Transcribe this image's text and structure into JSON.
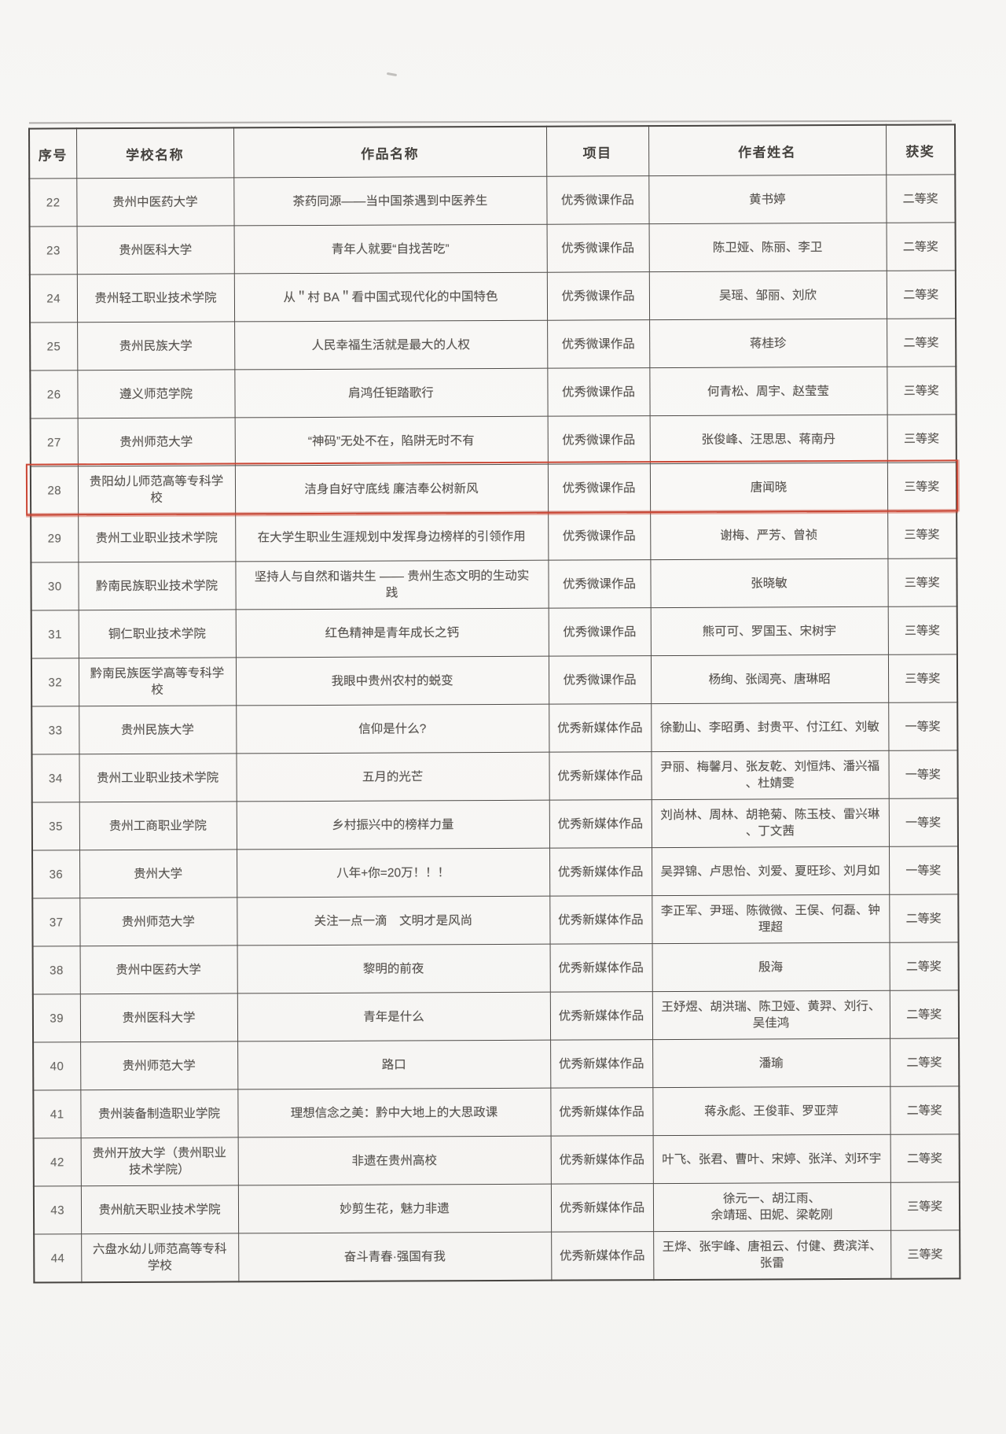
{
  "highlight_color": "#cb4634",
  "table": {
    "headers": [
      "序号",
      "学校名称",
      "作品名称",
      "项目",
      "作者姓名",
      "获奖"
    ],
    "rows": [
      {
        "no": "22",
        "school": "贵州中医药大学",
        "title": "茶药同源——当中国茶遇到中医养生",
        "category": "优秀微课作品",
        "authors": "黄书婷",
        "award": "二等奖",
        "highlighted": false
      },
      {
        "no": "23",
        "school": "贵州医科大学",
        "title": "青年人就要“自找苦吃”",
        "category": "优秀微课作品",
        "authors": "陈卫娅、陈丽、李卫",
        "award": "二等奖",
        "highlighted": false
      },
      {
        "no": "24",
        "school": "贵州轻工职业技术学院",
        "title": "从＂村 BA＂看中国式现代化的中国特色",
        "category": "优秀微课作品",
        "authors": "吴瑶、邹丽、刘欣",
        "award": "二等奖",
        "highlighted": false
      },
      {
        "no": "25",
        "school": "贵州民族大学",
        "title": "人民幸福生活就是最大的人权",
        "category": "优秀微课作品",
        "authors": "蒋桂珍",
        "award": "二等奖",
        "highlighted": false
      },
      {
        "no": "26",
        "school": "遵义师范学院",
        "title": "肩鸿任钜踏歌行",
        "category": "优秀微课作品",
        "authors": "何青松、周宇、赵莹莹",
        "award": "三等奖",
        "highlighted": false
      },
      {
        "no": "27",
        "school": "贵州师范大学",
        "title": "“神码”无处不在，陷阱无时不有",
        "category": "优秀微课作品",
        "authors": "张俊峰、汪思思、蒋南丹",
        "award": "三等奖",
        "highlighted": false
      },
      {
        "no": "28",
        "school": "贵阳幼儿师范高等专科学校",
        "title": "洁身自好守底线 廉洁奉公树新风",
        "category": "优秀微课作品",
        "authors": "唐闻晓",
        "award": "三等奖",
        "highlighted": true
      },
      {
        "no": "29",
        "school": "贵州工业职业技术学院",
        "title": "在大学生职业生涯规划中发挥身边榜样的引领作用",
        "category": "优秀微课作品",
        "authors": "谢梅、严芳、曾祯",
        "award": "三等奖",
        "highlighted": false
      },
      {
        "no": "30",
        "school": "黔南民族职业技术学院",
        "title": "坚持人与自然和谐共生 —— 贵州生态文明的生动实\n践",
        "category": "优秀微课作品",
        "authors": "张晓敏",
        "award": "三等奖",
        "highlighted": false
      },
      {
        "no": "31",
        "school": "铜仁职业技术学院",
        "title": "红色精神是青年成长之钙",
        "category": "优秀微课作品",
        "authors": "熊可可、罗国玉、宋树宇",
        "award": "三等奖",
        "highlighted": false
      },
      {
        "no": "32",
        "school": "黔南民族医学高等专科学\n校",
        "title": "我眼中贵州农村的蜕变",
        "category": "优秀微课作品",
        "authors": "杨绚、张阔亮、唐琳昭",
        "award": "三等奖",
        "highlighted": false
      },
      {
        "no": "33",
        "school": "贵州民族大学",
        "title": "信仰是什么?",
        "category": "优秀新媒体作品",
        "authors": "徐勤山、李昭勇、封贵平、付江红、刘敏",
        "award": "一等奖",
        "highlighted": false
      },
      {
        "no": "34",
        "school": "贵州工业职业技术学院",
        "title": "五月的光芒",
        "category": "优秀新媒体作品",
        "authors": "尹丽、梅馨月、张友乾、刘恒炜、潘兴福\n、杜婧雯",
        "award": "一等奖",
        "highlighted": false
      },
      {
        "no": "35",
        "school": "贵州工商职业学院",
        "title": "乡村振兴中的榜样力量",
        "category": "优秀新媒体作品",
        "authors": "刘尚林、周林、胡艳菊、陈玉枝、雷兴琳\n、丁文茜",
        "award": "一等奖",
        "highlighted": false
      },
      {
        "no": "36",
        "school": "贵州大学",
        "title": "八年+你=20万！！！",
        "category": "优秀新媒体作品",
        "authors": "吴羿锦、卢思怡、刘爱、夏旺珍、刘月如",
        "award": "一等奖",
        "highlighted": false
      },
      {
        "no": "37",
        "school": "贵州师范大学",
        "title": "关注一点一滴　文明才是风尚",
        "category": "优秀新媒体作品",
        "authors": "李正军、尹瑶、陈微微、王俣、何磊、钟\n理超",
        "award": "二等奖",
        "highlighted": false
      },
      {
        "no": "38",
        "school": "贵州中医药大学",
        "title": "黎明的前夜",
        "category": "优秀新媒体作品",
        "authors": "殷海",
        "award": "二等奖",
        "highlighted": false
      },
      {
        "no": "39",
        "school": "贵州医科大学",
        "title": "青年是什么",
        "category": "优秀新媒体作品",
        "authors": "王妤煜、胡洪瑞、陈卫娅、黄羿、刘行、\n吴佳鸿",
        "award": "二等奖",
        "highlighted": false
      },
      {
        "no": "40",
        "school": "贵州师范大学",
        "title": "路口",
        "category": "优秀新媒体作品",
        "authors": "潘瑜",
        "award": "二等奖",
        "highlighted": false
      },
      {
        "no": "41",
        "school": "贵州装备制造职业学院",
        "title": "理想信念之美：黔中大地上的大思政课",
        "category": "优秀新媒体作品",
        "authors": "蒋永彪、王俊菲、罗亚萍",
        "award": "二等奖",
        "highlighted": false
      },
      {
        "no": "42",
        "school": "贵州开放大学（贵州职业\n技术学院）",
        "title": "非遗在贵州高校",
        "category": "优秀新媒体作品",
        "authors": "叶飞、张君、曹叶、宋婷、张洋、刘环宇",
        "award": "二等奖",
        "highlighted": false
      },
      {
        "no": "43",
        "school": "贵州航天职业技术学院",
        "title": "妙剪生花，魅力非遗",
        "category": "优秀新媒体作品",
        "authors": "徐元一、胡江雨、\n余靖瑶、田妮、梁乾刚",
        "award": "三等奖",
        "highlighted": false
      },
      {
        "no": "44",
        "school": "六盘水幼儿师范高等专科\n学校",
        "title": "奋斗青春·强国有我",
        "category": "优秀新媒体作品",
        "authors": "王烨、张宇峰、唐祖云、付健、费滨洋、\n张雷",
        "award": "三等奖",
        "highlighted": false
      }
    ]
  }
}
